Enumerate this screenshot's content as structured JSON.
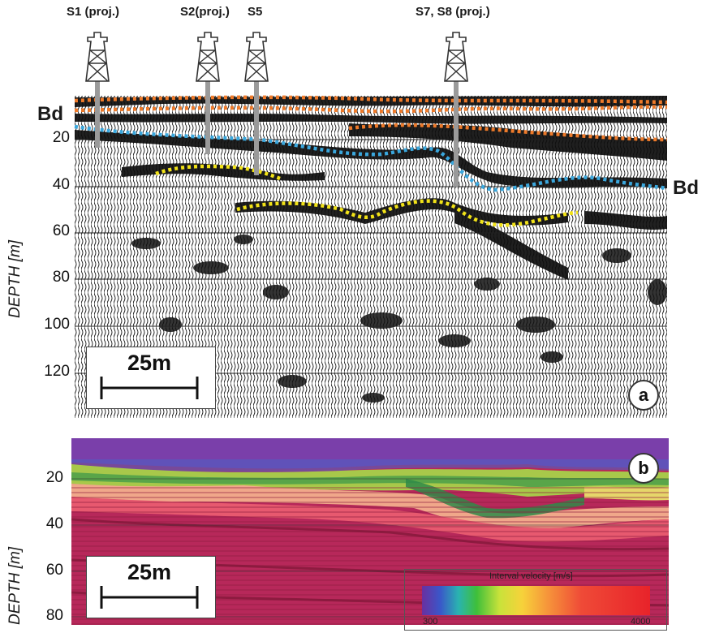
{
  "panel_a": {
    "letter": "a",
    "ylabel": "DEPTH [m]",
    "ticks": [
      "20",
      "40",
      "60",
      "80",
      "100",
      "120"
    ],
    "horizon_label": "Bd",
    "scale_label": "25m",
    "wells": [
      {
        "label": "S1 (proj.)"
      },
      {
        "label": "S2(proj.)"
      },
      {
        "label": "S5"
      },
      {
        "label": "S7, S8 (proj.)"
      }
    ]
  },
  "panel_b": {
    "letter": "b",
    "ylabel": "DEPTH [m]",
    "ticks": [
      "20",
      "40",
      "60",
      "80"
    ],
    "scale_label": "25m",
    "legend": {
      "title": "Interval velocity [m/s]",
      "min": "300",
      "max": "4000"
    }
  },
  "colors": {
    "orange_horizon": "#ee7a2a",
    "blue_horizon": "#3aa7dd",
    "yellow_horizon": "#f2e318",
    "tomo_top": "#7b3fa8",
    "tomo_mid": "#f1da6a",
    "tomo_deep": "#b3265a"
  }
}
